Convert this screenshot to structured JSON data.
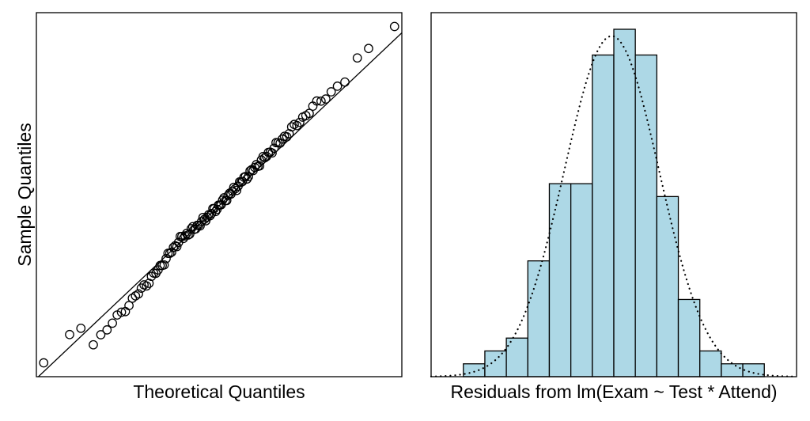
{
  "chart_data": [
    {
      "type": "scatter",
      "subtype": "qq-plot",
      "xlabel": "Theoretical Quantiles",
      "ylabel": "Sample Quantiles",
      "xlim": [
        -2.75,
        2.75
      ],
      "ylim": [
        -2.72,
        3.07
      ],
      "reference_line": {
        "intercept": 0.0,
        "slope": 1.0
      },
      "n_points": 120,
      "notable_points": [
        {
          "x": -2.64,
          "y": -2.5
        },
        {
          "x": -2.25,
          "y": -2.05
        },
        {
          "x": -2.08,
          "y": -1.95
        },
        {
          "x": 2.08,
          "y": 2.35
        },
        {
          "x": 2.25,
          "y": 2.5
        },
        {
          "x": 2.64,
          "y": 2.85
        }
      ],
      "sample_deviation": [
        [
          -2.4,
          -0.45
        ],
        [
          -1.9,
          -0.32
        ],
        [
          -1.4,
          -0.22
        ],
        [
          -0.9,
          -0.1
        ],
        [
          -0.6,
          0.05
        ],
        [
          -0.3,
          0.0
        ],
        [
          0.0,
          0.0
        ],
        [
          0.4,
          0.05
        ],
        [
          0.9,
          0.1
        ],
        [
          1.4,
          0.15
        ],
        [
          1.9,
          0.1
        ],
        [
          2.2,
          0.2
        ]
      ]
    },
    {
      "type": "bar",
      "subtype": "histogram",
      "xlabel": "Residuals from lm(Exam ~ Test * Attend)",
      "ylabel": "",
      "bin_start": -9,
      "bin_width": 1,
      "counts": [
        1,
        2,
        3,
        9,
        15,
        15,
        25,
        27,
        25,
        14,
        6,
        2,
        1,
        1
      ],
      "xlim": [
        -10.5,
        6.5
      ],
      "ylim": [
        0,
        27
      ],
      "overlay": {
        "type": "normal-density",
        "mean": -2.1,
        "sd": 2.2,
        "style": "dotted"
      }
    }
  ]
}
